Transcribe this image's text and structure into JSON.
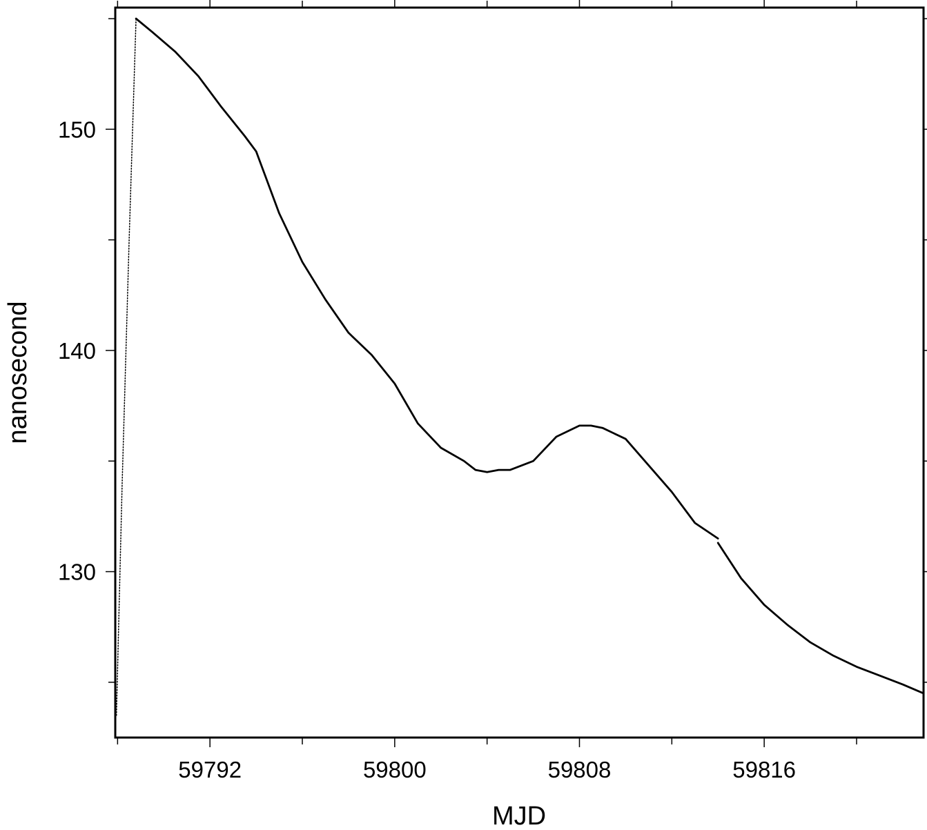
{
  "chart_data": {
    "type": "line",
    "title": "",
    "xlabel": "MJD",
    "ylabel": "nanosecond",
    "xlim": [
      59787.9,
      59822.9
    ],
    "ylim": [
      122.5,
      155.5
    ],
    "x_ticks": [
      59792,
      59800,
      59808,
      59816
    ],
    "y_ticks": [
      130,
      140,
      150
    ],
    "grid": false,
    "legend": "none",
    "line_color": "#000000",
    "series": [
      {
        "style": "dotted",
        "x": [
          59787.95,
          59788.2,
          59788.5,
          59788.8
        ],
        "y": [
          123.5,
          134.0,
          145.0,
          155.0
        ]
      },
      {
        "style": "solid",
        "x": [
          59788.8,
          59789.5,
          59790.5,
          59791.5,
          59792.5,
          59793.5,
          59794.0,
          59795.0,
          59796.0,
          59797.0,
          59798.0,
          59799.0,
          59800.0,
          59801.0,
          59802.0,
          59803.0,
          59803.5,
          59804.0,
          59804.5,
          59805.0,
          59806.0,
          59807.0,
          59808.0,
          59808.5,
          59809.0,
          59810.0,
          59811.0,
          59812.0,
          59813.0,
          59814.0
        ],
        "y": [
          155.0,
          154.4,
          153.5,
          152.4,
          151.0,
          149.7,
          149.0,
          146.2,
          144.0,
          142.3,
          140.8,
          139.8,
          138.5,
          136.7,
          135.6,
          135.0,
          134.6,
          134.5,
          134.6,
          134.6,
          135.0,
          136.1,
          136.6,
          136.6,
          136.5,
          136.0,
          134.8,
          133.6,
          132.2,
          131.5
        ]
      },
      {
        "style": "solid",
        "x": [
          59814.0,
          59815.0,
          59816.0,
          59817.0,
          59818.0,
          59819.0,
          59820.0,
          59821.0,
          59822.0,
          59822.9
        ],
        "y": [
          131.3,
          129.7,
          128.5,
          127.6,
          126.8,
          126.2,
          125.7,
          125.3,
          124.9,
          124.5
        ]
      }
    ]
  }
}
